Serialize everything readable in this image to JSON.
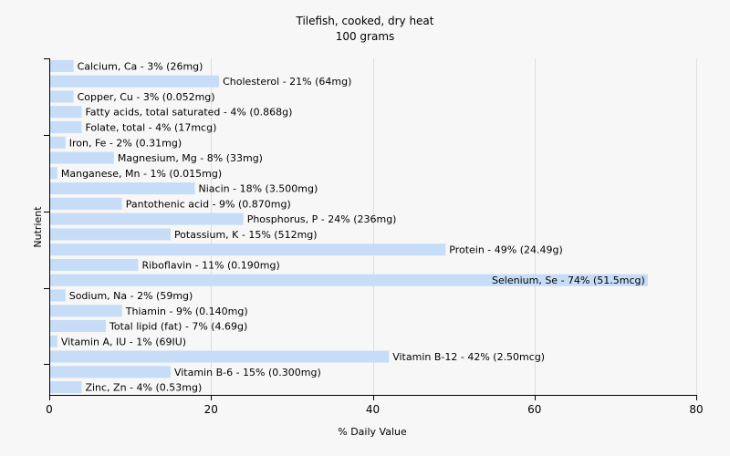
{
  "chart_data": {
    "type": "bar",
    "orientation": "horizontal",
    "title": "Tilefish, cooked, dry heat",
    "subtitle": "100 grams",
    "xlabel": "% Daily Value",
    "ylabel": "Nutrient",
    "xlim": [
      0,
      80
    ],
    "xticks": [
      0,
      20,
      40,
      60,
      80
    ],
    "grid": true,
    "bar_color": "#c6dcf7",
    "categories": [
      "Calcium, Ca",
      "Cholesterol",
      "Copper, Cu",
      "Fatty acids, total saturated",
      "Folate, total",
      "Iron, Fe",
      "Magnesium, Mg",
      "Manganese, Mn",
      "Niacin",
      "Pantothenic acid",
      "Phosphorus, P",
      "Potassium, K",
      "Protein",
      "Riboflavin",
      "Selenium, Se",
      "Sodium, Na",
      "Thiamin",
      "Total lipid (fat)",
      "Vitamin A, IU",
      "Vitamin B-12",
      "Vitamin B-6",
      "Zinc, Zn"
    ],
    "values": [
      3,
      21,
      3,
      4,
      4,
      2,
      8,
      1,
      18,
      9,
      24,
      15,
      49,
      11,
      74,
      2,
      9,
      7,
      1,
      42,
      15,
      4
    ],
    "labels": [
      "Calcium, Ca - 3% (26mg)",
      "Cholesterol - 21% (64mg)",
      "Copper, Cu - 3% (0.052mg)",
      "Fatty acids, total saturated - 4% (0.868g)",
      "Folate, total - 4% (17mcg)",
      "Iron, Fe - 2% (0.31mg)",
      "Magnesium, Mg - 8% (33mg)",
      "Manganese, Mn - 1% (0.015mg)",
      "Niacin - 18% (3.500mg)",
      "Pantothenic acid - 9% (0.870mg)",
      "Phosphorus, P - 24% (236mg)",
      "Potassium, K - 15% (512mg)",
      "Protein - 49% (24.49g)",
      "Riboflavin - 11% (0.190mg)",
      "Selenium, Se - 74% (51.5mcg)",
      "Sodium, Na - 2% (59mg)",
      "Thiamin - 9% (0.140mg)",
      "Total lipid (fat) - 7% (4.69g)",
      "Vitamin A, IU - 1% (69IU)",
      "Vitamin B-12 - 42% (2.50mcg)",
      "Vitamin B-6 - 15% (0.300mg)",
      "Zinc, Zn - 4% (0.53mg)"
    ]
  }
}
